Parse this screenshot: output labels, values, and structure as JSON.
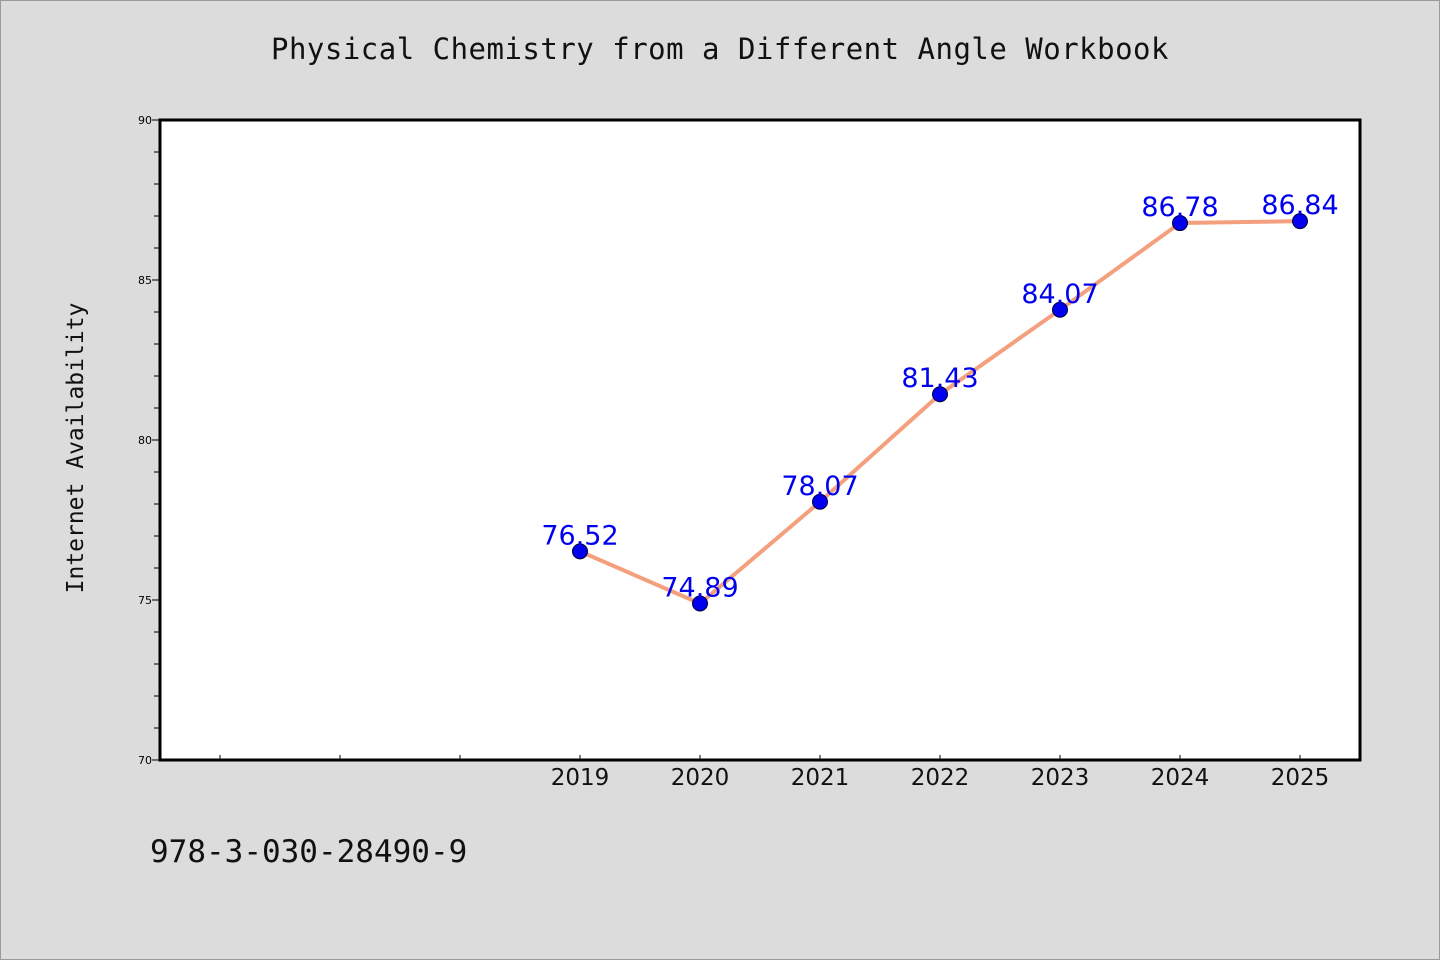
{
  "page": {
    "title": "Physical Chemistry from a Different Angle Workbook",
    "footer_code": "978-3-030-28490-9"
  },
  "chart_data": {
    "type": "line",
    "title": "Physical Chemistry from a Different Angle Workbook",
    "xlabel": "",
    "ylabel": "Internet Availability",
    "x": [
      "2019",
      "2020",
      "2021",
      "2022",
      "2023",
      "2024",
      "2025"
    ],
    "series": [
      {
        "values": [
          76.52,
          74.89,
          78.07,
          81.43,
          84.07,
          86.78,
          86.84
        ],
        "line_color": "#f4a07e",
        "marker_color": "#0000ee",
        "label_color": "#0000ee"
      }
    ],
    "ylim": [
      70,
      90
    ],
    "yticks": [
      70,
      75,
      80,
      85,
      90
    ],
    "grid": false,
    "legend": "none",
    "data_labels": true
  }
}
